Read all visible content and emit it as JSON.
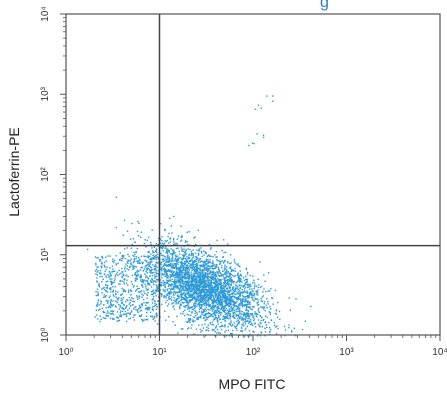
{
  "header_fragment": "g",
  "chart_data": {
    "type": "scatter",
    "title": "",
    "xlabel": "MPO FITC",
    "ylabel": "Lactoferrin-PE",
    "x_scale": "log",
    "y_scale": "log",
    "xlim": [
      1,
      10000
    ],
    "ylim": [
      1,
      10000
    ],
    "x_ticks": [
      {
        "value": 1,
        "label": "10⁰"
      },
      {
        "value": 10,
        "label": "10¹"
      },
      {
        "value": 100,
        "label": "10²"
      },
      {
        "value": 1000,
        "label": "10³"
      },
      {
        "value": 10000,
        "label": "10⁴"
      }
    ],
    "y_ticks": [
      {
        "value": 1,
        "label": "10⁰"
      },
      {
        "value": 10,
        "label": "10¹"
      },
      {
        "value": 100,
        "label": "10²"
      },
      {
        "value": 1000,
        "label": "10³"
      },
      {
        "value": 10000,
        "label": "10⁴"
      }
    ],
    "quadrant_gates": {
      "x": 10,
      "y": 13
    },
    "grid": false,
    "legend": "none",
    "point_color": "#2e9ad6",
    "axis_color": "#555555",
    "population": {
      "main_cluster": {
        "center": [
          30,
          4
        ],
        "approx_events": 3400
      },
      "tail_low_x": {
        "x_range": [
          2,
          10
        ],
        "y_range": [
          1.5,
          10
        ],
        "approx_events": 600
      },
      "sparse_upper_right": [
        [
          150,
          900
        ],
        [
          110,
          700
        ],
        [
          120,
          300
        ],
        [
          95,
          250
        ]
      ]
    }
  }
}
